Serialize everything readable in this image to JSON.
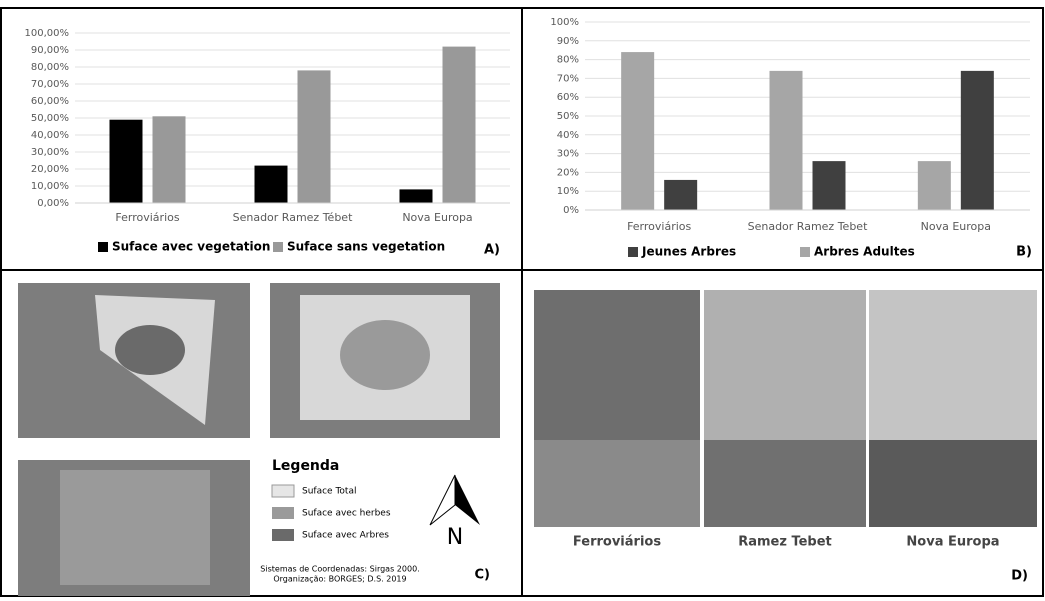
{
  "chart_data": [
    {
      "type": "bar",
      "categories": [
        "Ferroviários",
        "Senador Ramez Tébet",
        "Nova Europa"
      ],
      "series": [
        {
          "name": "Suface avec vegetation",
          "color": "#000000",
          "values": [
            49,
            22,
            8
          ]
        },
        {
          "name": "Suface sans vegetation",
          "color": "#999999",
          "values": [
            51,
            78,
            92
          ]
        }
      ],
      "ylim": [
        0,
        100
      ],
      "yticks": [
        {
          "value": 0,
          "label": "0,00%"
        },
        {
          "value": 10,
          "label": "10,00%"
        },
        {
          "value": 20,
          "label": "20,00%"
        },
        {
          "value": 30,
          "label": "30,00%"
        },
        {
          "value": 40,
          "label": "40,00%"
        },
        {
          "value": 50,
          "label": "50,00%"
        },
        {
          "value": 60,
          "label": "60,00%"
        },
        {
          "value": 70,
          "label": "70,00%"
        },
        {
          "value": 80,
          "label": "80,00%"
        },
        {
          "value": 90,
          "label": "90,00%"
        },
        {
          "value": 100,
          "label": "100,00%"
        }
      ],
      "grid": true,
      "panel_label": "A)"
    },
    {
      "type": "bar",
      "categories": [
        "Ferroviários",
        "Senador Ramez Tebet",
        "Nova Europa"
      ],
      "series": [
        {
          "name": "Jeunes Arbres",
          "color": "#404040",
          "values": [
            16,
            26,
            74
          ]
        },
        {
          "name": "Arbres Adultes",
          "color": "#a6a6a6",
          "values": [
            84,
            74,
            26
          ]
        }
      ],
      "ylim": [
        0,
        100
      ],
      "yticks": [
        {
          "value": 0,
          "label": "0%"
        },
        {
          "value": 10,
          "label": "10%"
        },
        {
          "value": 20,
          "label": "20%"
        },
        {
          "value": 30,
          "label": "30%"
        },
        {
          "value": 40,
          "label": "40%"
        },
        {
          "value": 50,
          "label": "50%"
        },
        {
          "value": 60,
          "label": "60%"
        },
        {
          "value": 70,
          "label": "70%"
        },
        {
          "value": 80,
          "label": "80%"
        },
        {
          "value": 90,
          "label": "90%"
        },
        {
          "value": 100,
          "label": "100%"
        }
      ],
      "grid": true,
      "panel_label": "B)"
    }
  ],
  "map_panel": {
    "legend_title": "Legenda",
    "legend_items": [
      "Suface Total",
      "Suface avec herbes",
      "Suface avec Arbres"
    ],
    "north": "N",
    "credits": [
      "Sistemas de Coordenadas: Sirgas 2000.",
      "Organização: BORGES; D.S. 2019"
    ],
    "panel_label": "C)"
  },
  "photo_panel": {
    "captions": [
      "Ferroviários",
      "Ramez Tebet",
      "Nova Europa"
    ],
    "panel_label": "D)"
  }
}
